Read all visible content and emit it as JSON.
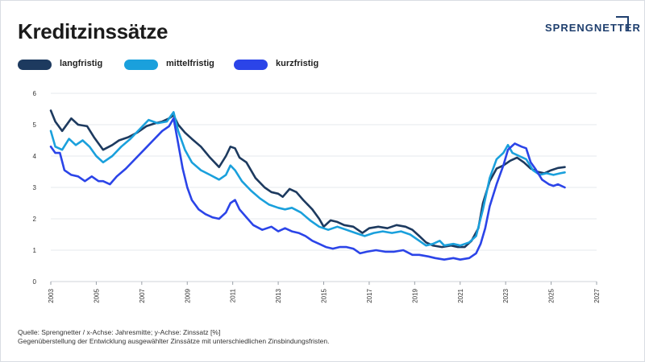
{
  "header": {
    "title": "Kreditzinssätze",
    "logo_text": "SPRENGNETTER"
  },
  "footer": {
    "source": "Quelle: Sprengnetter / x-Achse: Jahresmitte; y-Achse: Zinssatz [%]",
    "note": "Gegenüberstellung der Entwicklung ausgewählter Zinssätze mit unterschiedlichen Zinsbindungsfristen."
  },
  "chart_data": {
    "type": "line",
    "title": "Kreditzinssätze",
    "xlabel": "",
    "ylabel": "",
    "xlim": [
      2003,
      2027
    ],
    "ylim": [
      0,
      6
    ],
    "x_ticks": [
      2003,
      2005,
      2007,
      2009,
      2011,
      2013,
      2015,
      2017,
      2019,
      2021,
      2023,
      2025,
      2027
    ],
    "y_ticks": [
      0,
      1,
      2,
      3,
      4,
      5,
      6
    ],
    "grid": "horizontal",
    "legend_position": "top-left",
    "series": [
      {
        "name": "langfristig",
        "color": "#1d3a5f",
        "points": [
          [
            2003.0,
            5.45
          ],
          [
            2003.2,
            5.1
          ],
          [
            2003.5,
            4.8
          ],
          [
            2003.9,
            5.2
          ],
          [
            2004.2,
            5.0
          ],
          [
            2004.6,
            4.95
          ],
          [
            2004.9,
            4.6
          ],
          [
            2005.3,
            4.2
          ],
          [
            2005.7,
            4.35
          ],
          [
            2006.0,
            4.5
          ],
          [
            2006.4,
            4.6
          ],
          [
            2006.8,
            4.75
          ],
          [
            2007.2,
            4.95
          ],
          [
            2007.6,
            5.05
          ],
          [
            2007.9,
            5.1
          ],
          [
            2008.2,
            5.2
          ],
          [
            2008.4,
            5.3
          ],
          [
            2008.6,
            5.0
          ],
          [
            2008.9,
            4.75
          ],
          [
            2009.2,
            4.55
          ],
          [
            2009.6,
            4.3
          ],
          [
            2010.0,
            3.95
          ],
          [
            2010.4,
            3.65
          ],
          [
            2010.7,
            4.0
          ],
          [
            2010.9,
            4.3
          ],
          [
            2011.1,
            4.25
          ],
          [
            2011.3,
            3.95
          ],
          [
            2011.6,
            3.8
          ],
          [
            2012.0,
            3.3
          ],
          [
            2012.4,
            3.0
          ],
          [
            2012.7,
            2.85
          ],
          [
            2013.0,
            2.8
          ],
          [
            2013.2,
            2.7
          ],
          [
            2013.5,
            2.95
          ],
          [
            2013.8,
            2.85
          ],
          [
            2014.1,
            2.6
          ],
          [
            2014.5,
            2.3
          ],
          [
            2014.8,
            2.0
          ],
          [
            2015.0,
            1.75
          ],
          [
            2015.3,
            1.95
          ],
          [
            2015.6,
            1.9
          ],
          [
            2015.9,
            1.8
          ],
          [
            2016.3,
            1.75
          ],
          [
            2016.7,
            1.55
          ],
          [
            2017.0,
            1.7
          ],
          [
            2017.4,
            1.75
          ],
          [
            2017.8,
            1.7
          ],
          [
            2018.2,
            1.8
          ],
          [
            2018.6,
            1.75
          ],
          [
            2018.9,
            1.65
          ],
          [
            2019.2,
            1.45
          ],
          [
            2019.5,
            1.25
          ],
          [
            2019.8,
            1.15
          ],
          [
            2020.2,
            1.1
          ],
          [
            2020.6,
            1.15
          ],
          [
            2020.9,
            1.1
          ],
          [
            2021.2,
            1.1
          ],
          [
            2021.5,
            1.3
          ],
          [
            2021.8,
            1.7
          ],
          [
            2022.0,
            2.5
          ],
          [
            2022.3,
            3.2
          ],
          [
            2022.6,
            3.6
          ],
          [
            2022.9,
            3.7
          ],
          [
            2023.2,
            3.85
          ],
          [
            2023.5,
            3.95
          ],
          [
            2023.8,
            3.8
          ],
          [
            2024.1,
            3.6
          ],
          [
            2024.4,
            3.5
          ],
          [
            2024.7,
            3.45
          ],
          [
            2025.0,
            3.55
          ],
          [
            2025.3,
            3.62
          ],
          [
            2025.6,
            3.65
          ]
        ]
      },
      {
        "name": "mittelfristig",
        "color": "#1aa0dc",
        "points": [
          [
            2003.0,
            4.8
          ],
          [
            2003.2,
            4.3
          ],
          [
            2003.5,
            4.2
          ],
          [
            2003.8,
            4.55
          ],
          [
            2004.1,
            4.35
          ],
          [
            2004.4,
            4.5
          ],
          [
            2004.7,
            4.3
          ],
          [
            2005.0,
            4.0
          ],
          [
            2005.3,
            3.8
          ],
          [
            2005.7,
            4.0
          ],
          [
            2006.1,
            4.3
          ],
          [
            2006.5,
            4.55
          ],
          [
            2006.9,
            4.85
          ],
          [
            2007.3,
            5.15
          ],
          [
            2007.7,
            5.05
          ],
          [
            2008.1,
            5.1
          ],
          [
            2008.4,
            5.4
          ],
          [
            2008.6,
            4.8
          ],
          [
            2008.9,
            4.2
          ],
          [
            2009.2,
            3.8
          ],
          [
            2009.6,
            3.55
          ],
          [
            2010.0,
            3.4
          ],
          [
            2010.4,
            3.25
          ],
          [
            2010.7,
            3.4
          ],
          [
            2010.9,
            3.7
          ],
          [
            2011.1,
            3.55
          ],
          [
            2011.4,
            3.2
          ],
          [
            2011.8,
            2.9
          ],
          [
            2012.2,
            2.65
          ],
          [
            2012.6,
            2.45
          ],
          [
            2013.0,
            2.35
          ],
          [
            2013.3,
            2.3
          ],
          [
            2013.6,
            2.35
          ],
          [
            2014.0,
            2.2
          ],
          [
            2014.4,
            1.95
          ],
          [
            2014.8,
            1.75
          ],
          [
            2015.2,
            1.65
          ],
          [
            2015.6,
            1.75
          ],
          [
            2016.0,
            1.65
          ],
          [
            2016.4,
            1.55
          ],
          [
            2016.8,
            1.45
          ],
          [
            2017.2,
            1.55
          ],
          [
            2017.6,
            1.6
          ],
          [
            2018.0,
            1.55
          ],
          [
            2018.4,
            1.6
          ],
          [
            2018.8,
            1.5
          ],
          [
            2019.2,
            1.3
          ],
          [
            2019.5,
            1.15
          ],
          [
            2019.8,
            1.2
          ],
          [
            2020.1,
            1.3
          ],
          [
            2020.3,
            1.15
          ],
          [
            2020.7,
            1.2
          ],
          [
            2021.0,
            1.15
          ],
          [
            2021.4,
            1.25
          ],
          [
            2021.7,
            1.45
          ],
          [
            2022.0,
            2.3
          ],
          [
            2022.3,
            3.3
          ],
          [
            2022.6,
            3.9
          ],
          [
            2022.9,
            4.1
          ],
          [
            2023.1,
            4.35
          ],
          [
            2023.3,
            4.1
          ],
          [
            2023.6,
            4.0
          ],
          [
            2023.9,
            3.9
          ],
          [
            2024.2,
            3.55
          ],
          [
            2024.5,
            3.4
          ],
          [
            2024.8,
            3.45
          ],
          [
            2025.1,
            3.4
          ],
          [
            2025.4,
            3.45
          ],
          [
            2025.6,
            3.48
          ]
        ]
      },
      {
        "name": "kurzfristig",
        "color": "#2b44e8",
        "points": [
          [
            2003.0,
            4.3
          ],
          [
            2003.2,
            4.1
          ],
          [
            2003.4,
            4.1
          ],
          [
            2003.6,
            3.55
          ],
          [
            2003.9,
            3.4
          ],
          [
            2004.2,
            3.35
          ],
          [
            2004.5,
            3.2
          ],
          [
            2004.8,
            3.35
          ],
          [
            2005.1,
            3.2
          ],
          [
            2005.3,
            3.2
          ],
          [
            2005.6,
            3.1
          ],
          [
            2005.9,
            3.35
          ],
          [
            2006.3,
            3.6
          ],
          [
            2006.7,
            3.9
          ],
          [
            2007.1,
            4.2
          ],
          [
            2007.5,
            4.5
          ],
          [
            2007.9,
            4.8
          ],
          [
            2008.2,
            4.95
          ],
          [
            2008.4,
            5.2
          ],
          [
            2008.6,
            4.4
          ],
          [
            2008.8,
            3.6
          ],
          [
            2009.0,
            3.0
          ],
          [
            2009.2,
            2.6
          ],
          [
            2009.5,
            2.3
          ],
          [
            2009.8,
            2.15
          ],
          [
            2010.1,
            2.05
          ],
          [
            2010.4,
            2.0
          ],
          [
            2010.7,
            2.2
          ],
          [
            2010.9,
            2.5
          ],
          [
            2011.1,
            2.6
          ],
          [
            2011.3,
            2.3
          ],
          [
            2011.6,
            2.05
          ],
          [
            2011.9,
            1.8
          ],
          [
            2012.3,
            1.65
          ],
          [
            2012.7,
            1.75
          ],
          [
            2013.0,
            1.6
          ],
          [
            2013.3,
            1.7
          ],
          [
            2013.6,
            1.6
          ],
          [
            2013.9,
            1.55
          ],
          [
            2014.2,
            1.45
          ],
          [
            2014.5,
            1.3
          ],
          [
            2014.8,
            1.2
          ],
          [
            2015.1,
            1.1
          ],
          [
            2015.4,
            1.05
          ],
          [
            2015.7,
            1.1
          ],
          [
            2016.0,
            1.1
          ],
          [
            2016.3,
            1.05
          ],
          [
            2016.6,
            0.9
          ],
          [
            2016.9,
            0.95
          ],
          [
            2017.3,
            1.0
          ],
          [
            2017.7,
            0.95
          ],
          [
            2018.1,
            0.95
          ],
          [
            2018.5,
            1.0
          ],
          [
            2018.9,
            0.85
          ],
          [
            2019.2,
            0.85
          ],
          [
            2019.6,
            0.8
          ],
          [
            2019.9,
            0.75
          ],
          [
            2020.3,
            0.7
          ],
          [
            2020.7,
            0.75
          ],
          [
            2021.0,
            0.7
          ],
          [
            2021.4,
            0.75
          ],
          [
            2021.7,
            0.9
          ],
          [
            2021.9,
            1.2
          ],
          [
            2022.1,
            1.7
          ],
          [
            2022.3,
            2.4
          ],
          [
            2022.6,
            3.1
          ],
          [
            2022.9,
            3.7
          ],
          [
            2023.1,
            4.2
          ],
          [
            2023.4,
            4.4
          ],
          [
            2023.7,
            4.3
          ],
          [
            2023.9,
            4.25
          ],
          [
            2024.1,
            3.8
          ],
          [
            2024.3,
            3.6
          ],
          [
            2024.6,
            3.25
          ],
          [
            2024.9,
            3.1
          ],
          [
            2025.1,
            3.05
          ],
          [
            2025.3,
            3.1
          ],
          [
            2025.6,
            3.0
          ]
        ]
      }
    ]
  }
}
